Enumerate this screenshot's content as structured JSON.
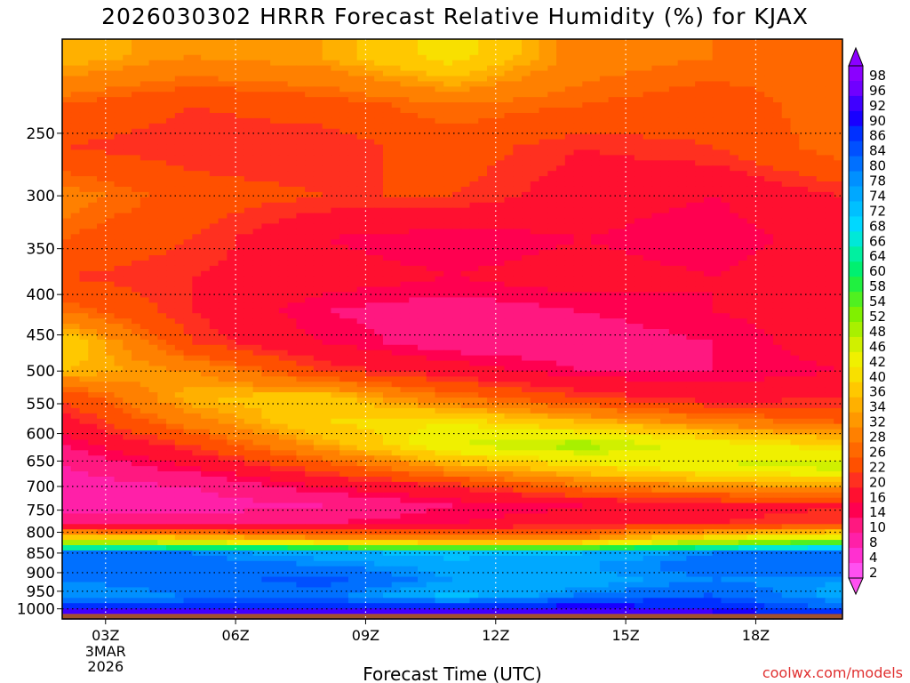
{
  "chart_data": {
    "type": "heatmap",
    "title": "2026030302 HRRR Forecast Relative Humidity (%) for KJAX",
    "xlabel": "Forecast Time (UTC)",
    "ylabel": "",
    "x_ticks": [
      {
        "h": 3,
        "label": "03Z",
        "sub": [
          "3MAR",
          "2026"
        ]
      },
      {
        "h": 6,
        "label": "06Z",
        "sub": []
      },
      {
        "h": 9,
        "label": "09Z",
        "sub": []
      },
      {
        "h": 12,
        "label": "12Z",
        "sub": []
      },
      {
        "h": 15,
        "label": "15Z",
        "sub": []
      },
      {
        "h": 18,
        "label": "18Z",
        "sub": []
      }
    ],
    "x_range": [
      2,
      20
    ],
    "y_scale": "log-pressure",
    "y_range_hpa": [
      1030,
      190
    ],
    "y_ticks": [
      250,
      300,
      350,
      400,
      450,
      500,
      550,
      600,
      650,
      700,
      750,
      800,
      850,
      900,
      950,
      1000
    ],
    "grid": true,
    "colorbar": {
      "labels": [
        98,
        96,
        92,
        90,
        86,
        84,
        80,
        78,
        74,
        72,
        68,
        66,
        64,
        60,
        58,
        54,
        52,
        48,
        46,
        42,
        40,
        36,
        34,
        32,
        28,
        26,
        22,
        20,
        16,
        14,
        10,
        8,
        4,
        2
      ],
      "colors": [
        "#8b00ff",
        "#7000ff",
        "#4000ff",
        "#1800ff",
        "#0030ff",
        "#0050ff",
        "#0070ff",
        "#0090ff",
        "#00a8ff",
        "#00c0ff",
        "#00d8ff",
        "#00e8d8",
        "#00f0a0",
        "#00f070",
        "#20f040",
        "#50f020",
        "#80f000",
        "#a8f000",
        "#d0f000",
        "#f0f000",
        "#f8e000",
        "#ffc800",
        "#ffb000",
        "#ff9800",
        "#ff8000",
        "#ff6800",
        "#ff5000",
        "#ff3020",
        "#ff1030",
        "#ff0050",
        "#ff1880",
        "#ff20a8",
        "#ff30d0",
        "#ff50f0"
      ],
      "position": "right"
    },
    "rh_profile": {
      "levels_hpa": [
        200,
        230,
        260,
        300,
        340,
        380,
        420,
        460,
        500,
        540,
        580,
        620,
        660,
        700,
        740,
        780,
        820,
        850,
        880,
        920,
        960,
        1000,
        1020
      ],
      "times_h": [
        2,
        5,
        8,
        11,
        14,
        17,
        20
      ],
      "rh": [
        [
          36,
          32,
          34,
          42,
          30,
          28,
          26
        ],
        [
          26,
          22,
          24,
          28,
          26,
          24,
          28
        ],
        [
          22,
          20,
          20,
          24,
          20,
          22,
          28
        ],
        [
          30,
          24,
          22,
          22,
          18,
          16,
          20
        ],
        [
          26,
          22,
          16,
          14,
          16,
          14,
          18
        ],
        [
          22,
          20,
          18,
          16,
          18,
          16,
          20
        ],
        [
          28,
          20,
          14,
          12,
          14,
          16,
          18
        ],
        [
          40,
          22,
          16,
          12,
          12,
          14,
          18
        ],
        [
          36,
          32,
          22,
          18,
          14,
          14,
          16
        ],
        [
          22,
          36,
          38,
          28,
          22,
          18,
          20
        ],
        [
          18,
          30,
          40,
          42,
          36,
          30,
          26
        ],
        [
          14,
          22,
          34,
          46,
          50,
          44,
          40
        ],
        [
          10,
          16,
          24,
          34,
          40,
          46,
          48
        ],
        [
          8,
          10,
          16,
          20,
          28,
          32,
          34
        ],
        [
          8,
          8,
          10,
          14,
          16,
          18,
          20
        ],
        [
          14,
          12,
          14,
          16,
          18,
          20,
          22
        ],
        [
          44,
          42,
          36,
          34,
          34,
          46,
          52
        ],
        [
          82,
          80,
          76,
          72,
          74,
          80,
          82
        ],
        [
          84,
          82,
          80,
          76,
          78,
          82,
          84
        ],
        [
          80,
          82,
          86,
          78,
          76,
          80,
          78
        ],
        [
          78,
          80,
          82,
          72,
          80,
          84,
          76
        ],
        [
          92,
          90,
          90,
          90,
          94,
          90,
          84
        ],
        [
          98,
          98,
          98,
          98,
          98,
          96,
          90
        ]
      ]
    },
    "terrain_color": "#a0522d"
  },
  "watermark": "coolwx.com/models"
}
